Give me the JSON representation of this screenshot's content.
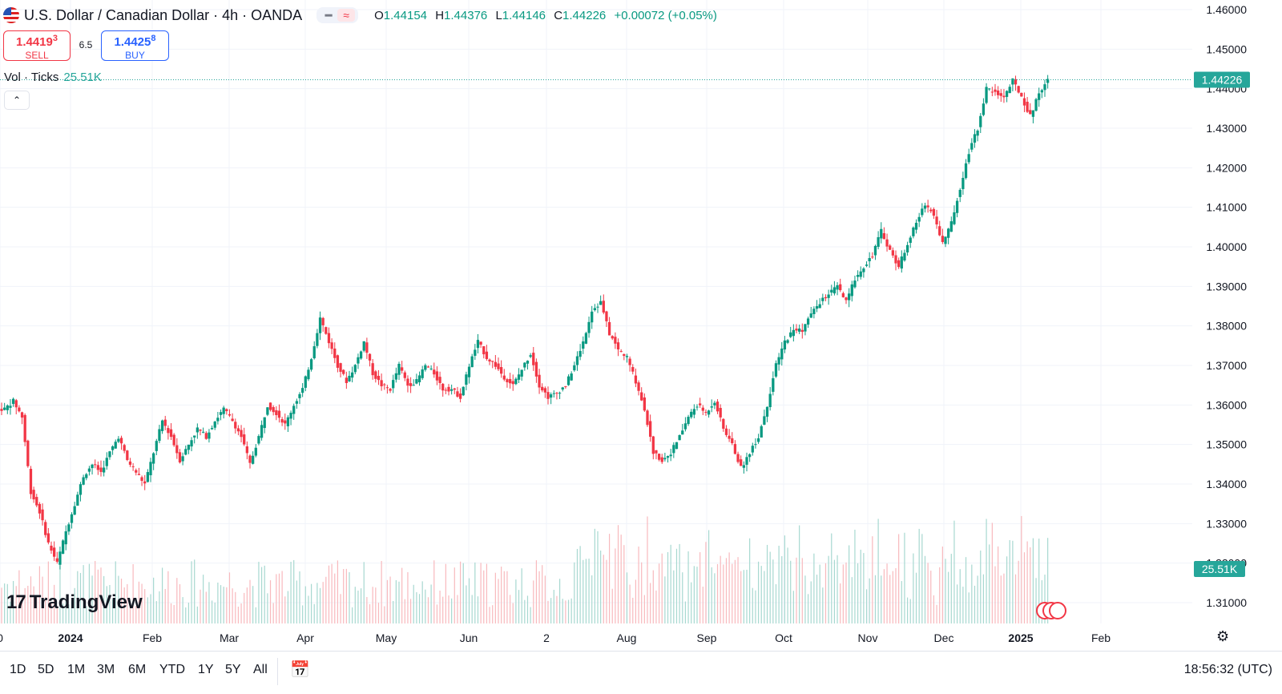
{
  "header": {
    "title": "U.S. Dollar / Canadian Dollar · 4h · OANDA",
    "pill_left_icon": "line-icon",
    "pill_right_icon": "approx-icon",
    "pill_right_glyph": "≈",
    "ohlc": {
      "o_label": "O",
      "o": "1.44154",
      "h_label": "H",
      "h": "1.44376",
      "l_label": "L",
      "l": "1.44146",
      "c_label": "C",
      "c": "1.44226",
      "change": "+0.00072 (+0.05%)"
    }
  },
  "trade": {
    "sell_price": "1.4419",
    "sell_sup": "3",
    "sell_label": "SELL",
    "spread": "6.5",
    "buy_price": "1.4425",
    "buy_sup": "8",
    "buy_label": "BUY"
  },
  "volume": {
    "label": "Vol · Ticks",
    "value": "25.51K",
    "scale_label": "25.51K"
  },
  "collapse_icon": "chevron-up-icon",
  "logo": {
    "text": "TradingView"
  },
  "timeframes": [
    "1D",
    "5D",
    "1M",
    "3M",
    "6M",
    "YTD",
    "1Y",
    "5Y",
    "All"
  ],
  "clock": "18:56:32 (UTC)",
  "colors": {
    "up": "#089981",
    "down": "#f23645",
    "last_price": "#26a69a",
    "vol_up": "#a7d8d0",
    "vol_down": "#f8b9bd"
  },
  "chart_data": {
    "type": "candlestick",
    "price_axis": {
      "ticks": [
        "1.46000",
        "1.45000",
        "1.44000",
        "1.43000",
        "1.42000",
        "1.41000",
        "1.40000",
        "1.39000",
        "1.38000",
        "1.37000",
        "1.36000",
        "1.35000",
        "1.34000",
        "1.33000",
        "1.32000",
        "1.31000"
      ],
      "range": [
        1.3055,
        1.4628
      ]
    },
    "last_price": "1.44226",
    "x_ticks": [
      "0",
      "2024",
      "Feb",
      "Mar",
      "Apr",
      "May",
      "Jun",
      "2",
      "Aug",
      "Sep",
      "Oct",
      "Nov",
      "Dec",
      "2025",
      "Feb"
    ],
    "bold_ticks": [
      "2024",
      "2025"
    ],
    "series": [
      {
        "values": [
          1.359,
          1.361,
          1.357,
          1.338,
          1.333,
          1.325,
          1.32,
          1.328,
          1.335,
          1.342,
          1.345,
          1.343,
          1.348,
          1.352,
          1.346,
          1.343,
          1.34,
          1.348,
          1.356,
          1.352,
          1.346,
          1.35,
          1.354,
          1.352,
          1.356,
          1.359,
          1.356,
          1.352,
          1.345,
          1.352,
          1.36,
          1.358,
          1.355,
          1.36,
          1.364,
          1.372,
          1.382,
          1.376,
          1.37,
          1.366,
          1.37,
          1.376,
          1.368,
          1.365,
          1.364,
          1.37,
          1.365,
          1.366,
          1.37,
          1.368,
          1.364,
          1.364,
          1.362,
          1.37,
          1.376,
          1.372,
          1.37,
          1.367,
          1.365,
          1.369,
          1.373,
          1.365,
          1.362,
          1.363,
          1.365,
          1.37,
          1.376,
          1.384,
          1.386,
          1.378,
          1.374,
          1.372,
          1.366,
          1.359,
          1.348,
          1.346,
          1.348,
          1.352,
          1.357,
          1.36,
          1.358,
          1.361,
          1.354,
          1.35,
          1.344,
          1.348,
          1.352,
          1.36,
          1.37,
          1.376,
          1.379,
          1.379,
          1.383,
          1.386,
          1.388,
          1.39,
          1.386,
          1.392,
          1.395,
          1.398,
          1.404,
          1.399,
          1.395,
          1.401,
          1.406,
          1.411,
          1.408,
          1.401,
          1.406,
          1.415,
          1.424,
          1.43,
          1.44,
          1.439,
          1.438,
          1.442,
          1.438,
          1.433,
          1.439,
          1.4423
        ]
      }
    ]
  }
}
